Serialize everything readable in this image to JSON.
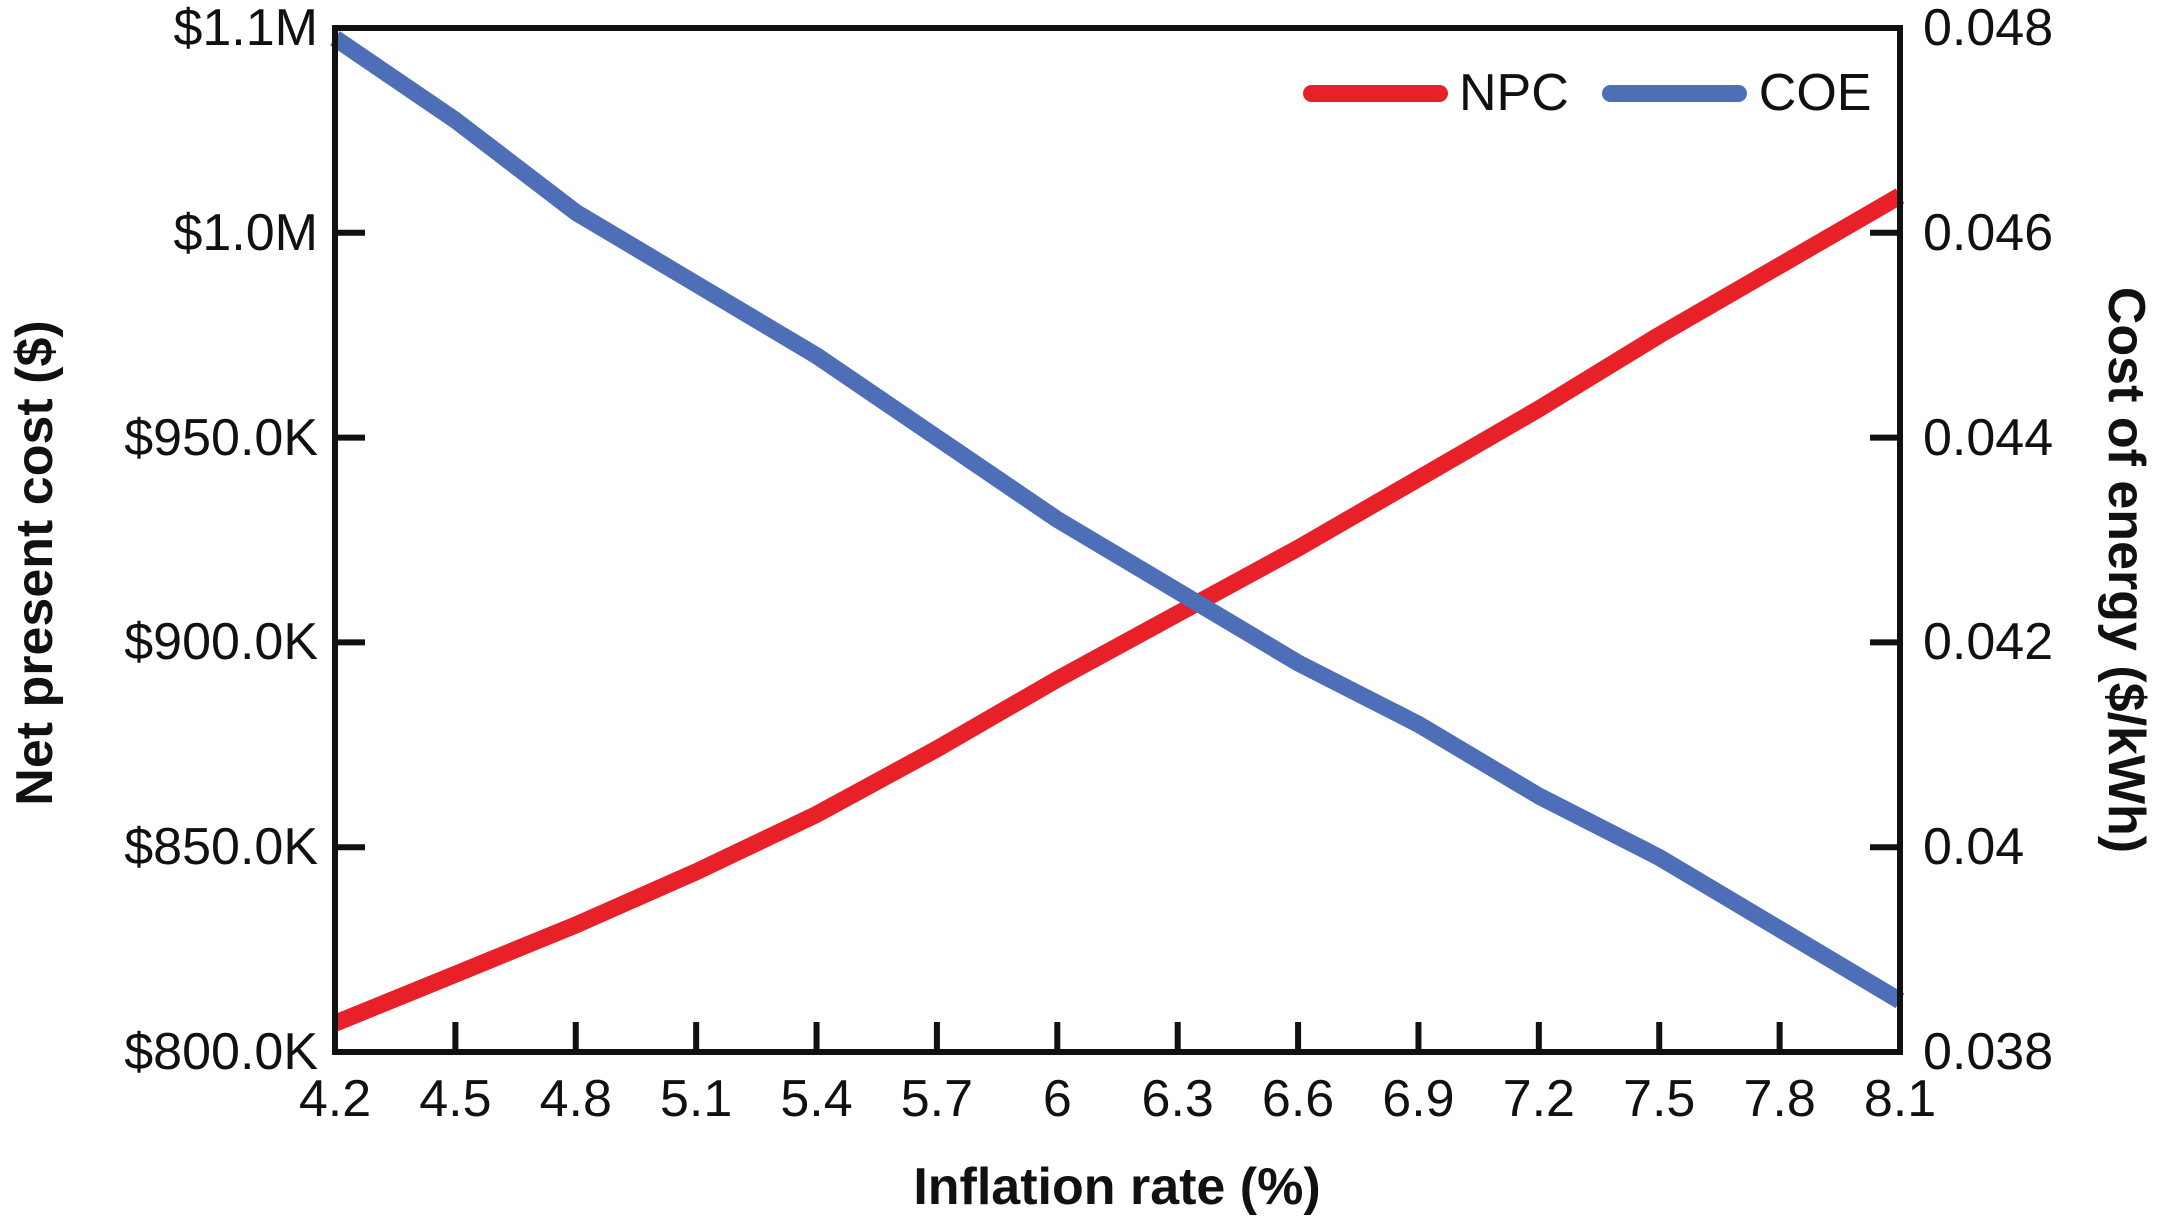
{
  "figure": {
    "background": "#ffffff",
    "text_color": "#111111",
    "axis_color": "#111111"
  },
  "chart_data": {
    "type": "line",
    "title": "",
    "grid": false,
    "x_axis": {
      "title": "Inflation rate (%)",
      "tick_labels": [
        "4.2",
        "4.5",
        "4.8",
        "5.1",
        "5.4",
        "5.7",
        "6",
        "6.3",
        "6.6",
        "6.9",
        "7.2",
        "7.5",
        "7.8",
        "8.1"
      ],
      "values": [
        4.2,
        4.5,
        4.8,
        5.1,
        5.4,
        5.7,
        6.0,
        6.3,
        6.6,
        6.9,
        7.2,
        7.5,
        7.8,
        8.1
      ]
    },
    "left_axis": {
      "title": "Net present cost ($)",
      "tick_labels": [
        "$800.0K",
        "$850.0K",
        "$900.0K",
        "$950.0K",
        "$1.0M",
        "$1.1M"
      ],
      "min": 800000,
      "max": 1050000
    },
    "right_axis": {
      "title": "Cost of energy ($/kWh)",
      "tick_labels": [
        "0.038",
        "0.04",
        "0.042",
        "0.044",
        "0.046",
        "0.048"
      ],
      "min": 0.038,
      "max": 0.048
    },
    "series": [
      {
        "name": "NPC",
        "axis": "left",
        "color": "#e82028",
        "values": [
          807000,
          819000,
          831000,
          844000,
          858000,
          874000,
          891000,
          907000,
          923000,
          940000,
          957000,
          975000,
          992000,
          1009000
        ]
      },
      {
        "name": "COE",
        "axis": "right",
        "color": "#4e6eb8",
        "values": [
          0.0479,
          0.0471,
          0.0462,
          0.0455,
          0.0448,
          0.044,
          0.0432,
          0.0425,
          0.0418,
          0.0412,
          0.0405,
          0.0399,
          0.0392,
          0.0385
        ]
      }
    ],
    "legend": {
      "position": "top-right-inside",
      "entries": [
        "NPC",
        "COE"
      ]
    }
  }
}
